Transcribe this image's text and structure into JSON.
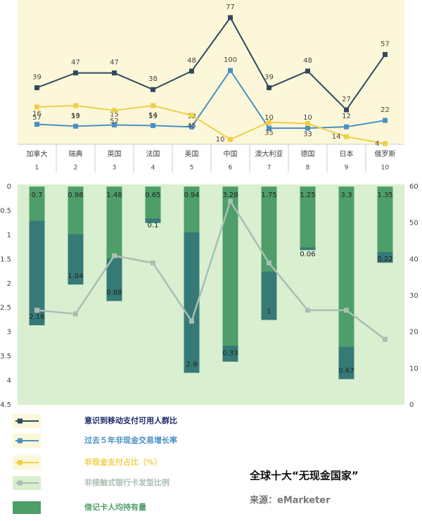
{
  "chart_data": [
    {
      "type": "line",
      "categories": [
        "加拿大",
        "瑞典",
        "英国",
        "法国",
        "美国",
        "中国",
        "澳大利亚",
        "德国",
        "日本",
        "俄罗斯"
      ],
      "ranks": [
        "1",
        "2",
        "3",
        "4",
        "5",
        "6",
        "7",
        "8",
        "9",
        "10"
      ],
      "series": [
        {
          "name": "意识到移动支付可用人群比",
          "color": "#2e4a5e",
          "values": [
            39,
            47,
            47,
            38,
            48,
            77,
            39,
            48,
            27,
            57
          ]
        },
        {
          "name": "过去５年非现金交易增长率",
          "color": "#4a90c4",
          "values": [
            16,
            13,
            15,
            14,
            12,
            100,
            10,
            10,
            12,
            22
          ]
        },
        {
          "name": "非现金支付占比（%）",
          "color": "#efcf4a",
          "values": [
            57,
            59,
            52,
            59,
            45,
            10,
            35,
            33,
            14,
            4
          ]
        }
      ]
    },
    {
      "type": "bar",
      "ylim": [
        0,
        4.5
      ],
      "yticks": [
        0,
        0.5,
        1,
        1.5,
        2,
        2.5,
        3,
        3.5,
        4,
        4.5
      ],
      "y2lim": [
        0,
        60
      ],
      "y2ticks": [
        0,
        10,
        20,
        30,
        40,
        50,
        60
      ],
      "series": [
        {
          "name": "借记卡人均持有量",
          "color": "#4e9e6a",
          "values": [
            0.7,
            0.98,
            1.48,
            0.65,
            0.94,
            3.28,
            1.75,
            1.25,
            3.3,
            1.35
          ]
        },
        {
          "color": "#367a78",
          "values": [
            2.16,
            1.04,
            0.88,
            0.1,
            2.9,
            0.33,
            1,
            0.06,
            0.67,
            0.22
          ]
        },
        {
          "name": "非接触式银行卡发型比例",
          "color": "#a9bfb3",
          "axis": "y2",
          "values": [
            26,
            25,
            41,
            39,
            23,
            56,
            39,
            26,
            26,
            18
          ]
        }
      ]
    },
    {
      "type": "text",
      "title": "全球十大“无现金国家”",
      "source": "来源：eMarketer"
    }
  ]
}
